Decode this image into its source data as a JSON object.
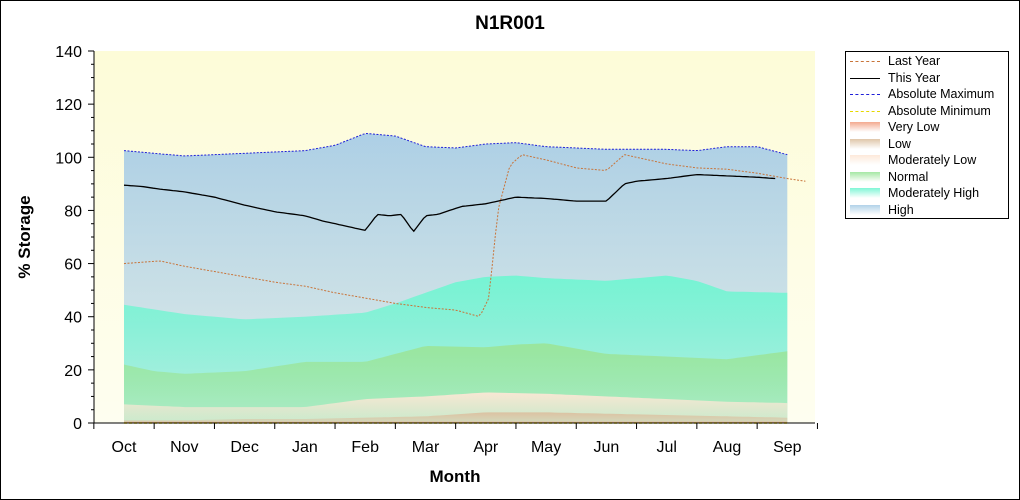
{
  "chart_data": {
    "type": "area",
    "title": "N1R001",
    "xlabel": "Month",
    "ylabel": "% Storage",
    "ylim": [
      0,
      140
    ],
    "yticks": [
      0,
      20,
      40,
      60,
      80,
      100,
      120,
      140
    ],
    "categories": [
      "Oct",
      "Nov",
      "Dec",
      "Jan",
      "Feb",
      "Mar",
      "Apr",
      "May",
      "Jun",
      "Jul",
      "Aug",
      "Sep"
    ],
    "grid": false,
    "legend_position": "right",
    "colors": {
      "plot_background": "#fdfce3",
      "last_year": "#c8743a",
      "this_year": "#000000",
      "absolute_maximum": "#1f1fd8",
      "absolute_minimum": "#e6d800",
      "very_low": "#f2a083",
      "low": "#dcc0a0",
      "moderately_low": "#fde7d6",
      "normal": "#9be59a",
      "moderately_high": "#72f5d2",
      "high": "#a9cde6"
    },
    "series": [
      {
        "name": "Last Year",
        "key": "last_year",
        "x": [
          0,
          0.3,
          0.6,
          1,
          1.5,
          2,
          2.5,
          3,
          3.5,
          4,
          4.5,
          5,
          5.5,
          5.9,
          6.05,
          6.2,
          6.4,
          6.6,
          7,
          7.5,
          8,
          8.3,
          9,
          9.5,
          10,
          10.5,
          11,
          11.3
        ],
        "values": [
          60,
          60.5,
          61,
          59,
          57,
          55,
          53,
          51.5,
          49,
          47,
          45,
          43.5,
          42.5,
          40,
          47,
          80,
          97,
          101,
          99,
          96,
          95,
          101,
          97.5,
          96,
          95.5,
          94,
          92,
          91
        ]
      },
      {
        "name": "This Year",
        "key": "this_year",
        "x": [
          0,
          0.3,
          0.6,
          1,
          1.5,
          2,
          2.5,
          3,
          3.3,
          3.8,
          4,
          4.2,
          4.4,
          4.6,
          4.8,
          5,
          5.2,
          5.6,
          6,
          6.5,
          7,
          7.5,
          8,
          8.3,
          8.5,
          9,
          9.5,
          10,
          10.5,
          10.8
        ],
        "values": [
          89.5,
          89,
          88,
          87,
          85,
          82,
          79.5,
          78,
          76,
          73.5,
          72.5,
          78.5,
          78,
          78.5,
          72,
          78,
          78.5,
          81.5,
          82.5,
          85,
          84.5,
          83.5,
          83.5,
          90,
          91,
          92,
          93.5,
          93,
          92.5,
          92
        ]
      },
      {
        "name": "Absolute Maximum",
        "key": "absolute_maximum",
        "x": [
          0,
          1,
          2,
          3,
          3.5,
          4,
          4.5,
          5,
          5.5,
          6,
          6.5,
          7,
          8,
          9,
          9.5,
          10,
          10.5,
          11
        ],
        "values": [
          102.5,
          100.5,
          101.5,
          102.5,
          104.5,
          109,
          108,
          104,
          103.5,
          105,
          105.5,
          104,
          103,
          103,
          102.5,
          104,
          104,
          101
        ]
      },
      {
        "name": "Absolute Minimum",
        "key": "absolute_minimum",
        "x": [
          0,
          11
        ],
        "values": [
          0,
          0
        ]
      }
    ],
    "bands": [
      {
        "name": "Very Low",
        "key": "very_low",
        "x": [
          0,
          1,
          2,
          3,
          4,
          5,
          6,
          7,
          8,
          9,
          10,
          11
        ],
        "values": [
          0.5,
          0.5,
          0.5,
          0.5,
          0.5,
          0.5,
          0.5,
          0.5,
          0.5,
          0.5,
          0.5,
          0.5
        ]
      },
      {
        "name": "Low",
        "key": "low",
        "x": [
          0,
          1,
          2,
          3,
          4,
          5,
          6,
          7,
          8,
          9,
          10,
          11
        ],
        "values": [
          1,
          1,
          1.5,
          1.5,
          2,
          2.5,
          4,
          4,
          3.5,
          3,
          2.5,
          2
        ]
      },
      {
        "name": "Moderately Low",
        "key": "moderately_low",
        "x": [
          0,
          1,
          2,
          3,
          4,
          5,
          6,
          7,
          8,
          9,
          10,
          11
        ],
        "values": [
          7,
          6,
          6,
          6,
          9,
          10,
          11.5,
          11,
          10,
          9,
          8,
          7.5
        ]
      },
      {
        "name": "Normal",
        "key": "normal",
        "x": [
          0,
          0.5,
          1,
          2,
          3,
          4,
          5,
          6,
          6.5,
          7,
          8,
          9,
          10,
          11
        ],
        "values": [
          22,
          19.5,
          18.5,
          19.5,
          23,
          23,
          29,
          28.5,
          29.5,
          30,
          26,
          25,
          24,
          27
        ]
      },
      {
        "name": "Moderately High",
        "key": "moderately_high",
        "x": [
          0,
          1,
          2,
          3,
          4,
          4.5,
          5,
          5.5,
          6,
          6.5,
          7,
          8,
          8.5,
          9,
          9.5,
          10,
          11
        ],
        "values": [
          44.5,
          41,
          39,
          40,
          41.5,
          45,
          49,
          53,
          55,
          55.5,
          54.5,
          53.5,
          54.5,
          55.5,
          53.5,
          49.5,
          49
        ]
      },
      {
        "name": "High",
        "key": "high",
        "x": [
          0,
          1,
          2,
          3,
          3.5,
          4,
          4.5,
          5,
          5.5,
          6,
          6.5,
          7,
          8,
          9,
          9.5,
          10,
          10.5,
          11
        ],
        "values": [
          102.5,
          100.5,
          101.5,
          102.5,
          104.5,
          109,
          108,
          104,
          103.5,
          105,
          105.5,
          104,
          103,
          103,
          102.5,
          104,
          104,
          101
        ]
      }
    ],
    "legend_order": [
      "last_year",
      "this_year",
      "absolute_maximum",
      "absolute_minimum",
      "very_low",
      "low",
      "moderately_low",
      "normal",
      "moderately_high",
      "high"
    ]
  }
}
